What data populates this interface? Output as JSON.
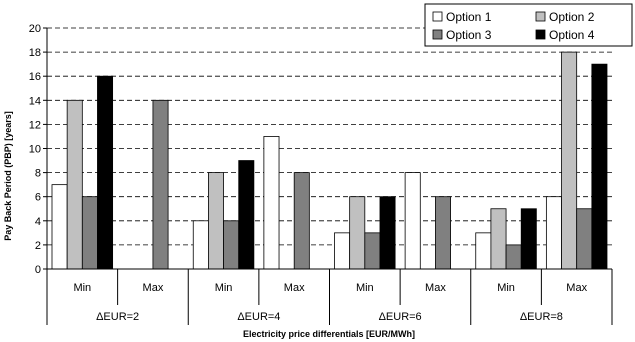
{
  "chart_data": {
    "type": "bar",
    "title": "",
    "xlabel": "Electricity price differentials [EUR/MWh]",
    "ylabel": "Pay Back Period (PBP) [years]",
    "ylim": [
      0,
      20
    ],
    "yticks": [
      0,
      2,
      4,
      6,
      8,
      10,
      12,
      14,
      16,
      18,
      20
    ],
    "grid": "horizontal dashed",
    "legend_position": "top-right",
    "groups": [
      {
        "label": "ΔEUR=2",
        "categories": [
          "Min",
          "Max"
        ]
      },
      {
        "label": "ΔEUR=4",
        "categories": [
          "Min",
          "Max"
        ]
      },
      {
        "label": "ΔEUR=6",
        "categories": [
          "Min",
          "Max"
        ]
      },
      {
        "label": "ΔEUR=8",
        "categories": [
          "Min",
          "Max"
        ]
      }
    ],
    "series": [
      {
        "name": "Option 1",
        "color": "#ffffff",
        "values": [
          7,
          null,
          4,
          11,
          3,
          8,
          3,
          6
        ]
      },
      {
        "name": "Option 2",
        "color": "#c0c0c0",
        "values": [
          14,
          null,
          8,
          null,
          6,
          null,
          5,
          18
        ]
      },
      {
        "name": "Option 3",
        "color": "#808080",
        "values": [
          6,
          14,
          4,
          8,
          3,
          6,
          2,
          5
        ]
      },
      {
        "name": "Option 4",
        "color": "#000000",
        "values": [
          16,
          null,
          9,
          null,
          6,
          null,
          5,
          17
        ]
      }
    ]
  }
}
